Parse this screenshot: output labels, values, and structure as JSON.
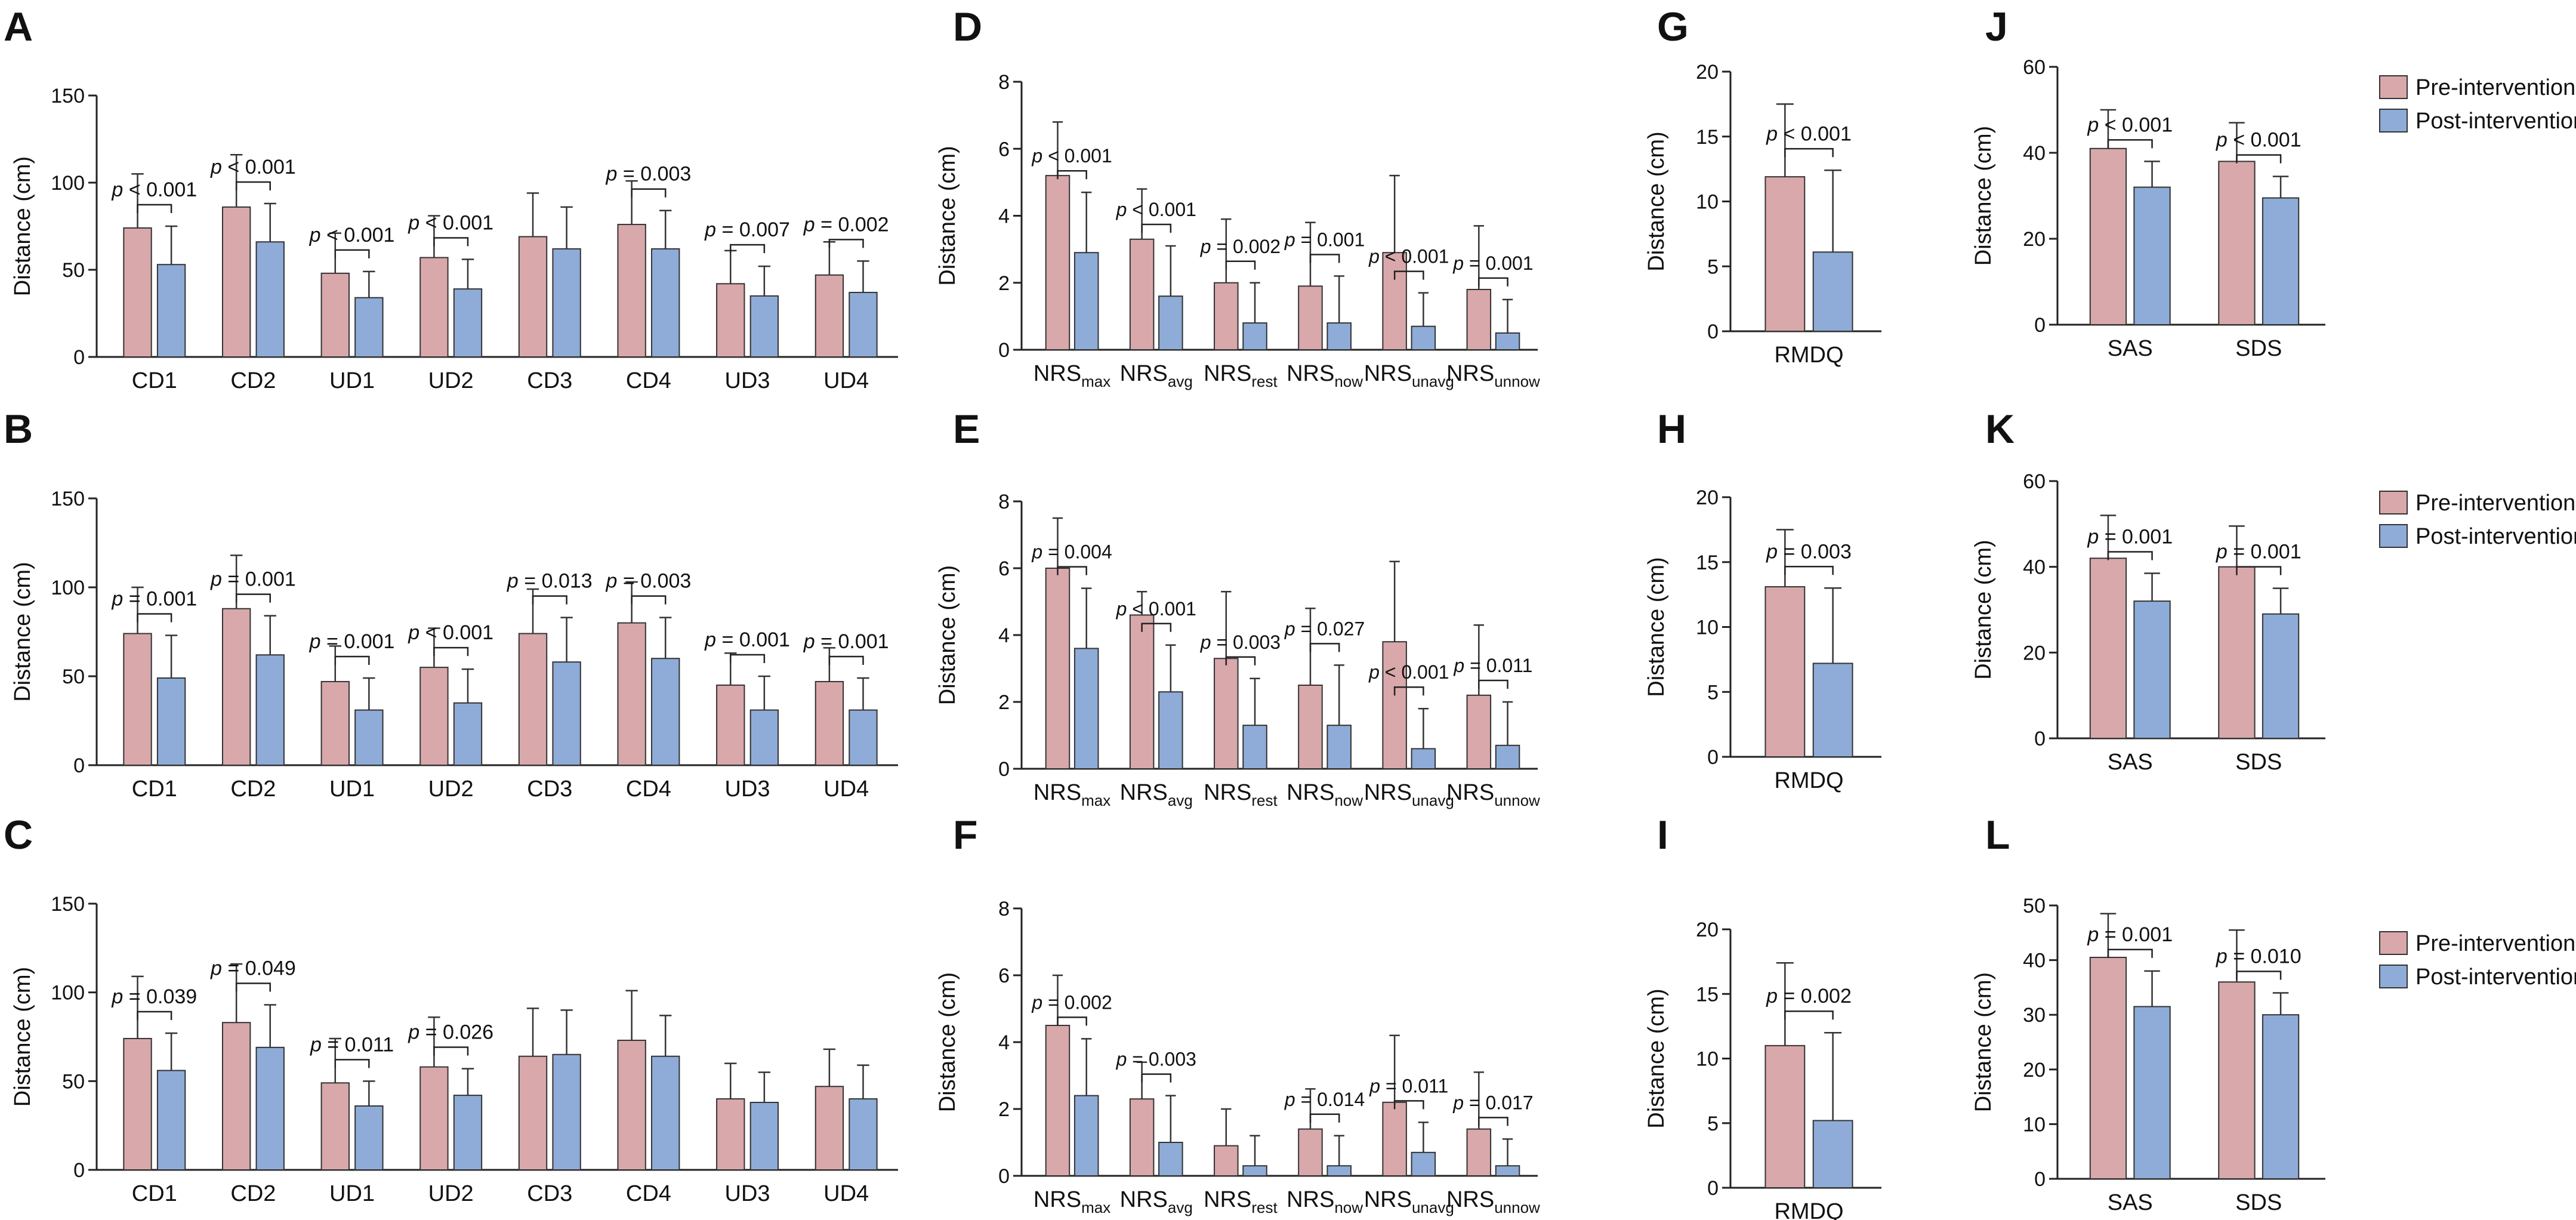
{
  "legend": {
    "pre_label": "Pre-intervention",
    "post_label": "Post-intervention",
    "pre_color": "#d9a8ab",
    "post_color": "#8facd8"
  },
  "chart_data": [
    {
      "id": "A",
      "type": "bar",
      "ylabel": "Distance (cm)",
      "ylim": [
        0,
        150
      ],
      "yticks": [
        0,
        50,
        100,
        150
      ],
      "categories": [
        "CD1",
        "CD2",
        "UD1",
        "UD2",
        "CD3",
        "CD4",
        "UD3",
        "UD4"
      ],
      "series": [
        {
          "name": "Pre-intervention",
          "values": [
            74,
            86,
            48,
            57,
            69,
            76,
            42,
            47
          ],
          "errors": [
            31,
            30,
            23,
            24,
            25,
            25,
            19,
            19
          ]
        },
        {
          "name": "Post-intervention",
          "values": [
            53,
            66,
            34,
            39,
            62,
            62,
            35,
            37
          ],
          "errors": [
            22,
            22,
            15,
            17,
            24,
            22,
            17,
            18
          ]
        }
      ],
      "annotations": [
        "p < 0.001",
        "p < 0.001",
        "p < 0.001",
        "p < 0.001",
        "",
        "p = 0.003",
        "p = 0.007",
        "p = 0.002"
      ]
    },
    {
      "id": "B",
      "type": "bar",
      "ylabel": "Distance (cm)",
      "ylim": [
        0,
        150
      ],
      "yticks": [
        0,
        50,
        100,
        150
      ],
      "categories": [
        "CD1",
        "CD2",
        "UD1",
        "UD2",
        "CD3",
        "CD4",
        "UD3",
        "UD4"
      ],
      "series": [
        {
          "name": "Pre-intervention",
          "values": [
            74,
            88,
            47,
            55,
            74,
            80,
            45,
            47
          ],
          "errors": [
            26,
            30,
            20,
            22,
            25,
            23,
            18,
            19
          ]
        },
        {
          "name": "Post-intervention",
          "values": [
            49,
            62,
            31,
            35,
            58,
            60,
            31,
            31
          ],
          "errors": [
            24,
            22,
            18,
            19,
            25,
            23,
            19,
            18
          ]
        }
      ],
      "annotations": [
        "p = 0.001",
        "p = 0.001",
        "p = 0.001",
        "p < 0.001",
        "p = 0.013",
        "p = 0.003",
        "p = 0.001",
        "p = 0.001"
      ]
    },
    {
      "id": "C",
      "type": "bar",
      "ylabel": "Distance (cm)",
      "ylim": [
        0,
        150
      ],
      "yticks": [
        0,
        50,
        100,
        150
      ],
      "categories": [
        "CD1",
        "CD2",
        "UD1",
        "UD2",
        "CD3",
        "CD4",
        "UD3",
        "UD4"
      ],
      "series": [
        {
          "name": "Pre-intervention",
          "values": [
            74,
            83,
            49,
            58,
            64,
            73,
            40,
            47
          ],
          "errors": [
            35,
            33,
            25,
            28,
            27,
            28,
            20,
            21
          ]
        },
        {
          "name": "Post-intervention",
          "values": [
            56,
            69,
            36,
            42,
            65,
            64,
            38,
            40
          ],
          "errors": [
            21,
            24,
            14,
            15,
            25,
            23,
            17,
            19
          ]
        }
      ],
      "annotations": [
        "p = 0.039",
        "p = 0.049",
        "p = 0.011",
        "p = 0.026",
        "",
        "",
        "",
        ""
      ]
    },
    {
      "id": "D",
      "type": "bar",
      "ylabel": "Distance (cm)",
      "ylim": [
        0,
        8
      ],
      "yticks": [
        0,
        2,
        4,
        6,
        8
      ],
      "categories": [
        "NRS_max",
        "NRS_avg",
        "NRS_rest",
        "NRS_now",
        "NRS_unavg",
        "NRS_unnow"
      ],
      "category_text": [
        "NRS",
        "NRS",
        "NRS",
        "NRS",
        "NRS",
        "NRS"
      ],
      "category_sub": [
        "max",
        "avg",
        "rest",
        "now",
        "unavg",
        "unnow"
      ],
      "series": [
        {
          "name": "Pre-intervention",
          "values": [
            5.2,
            3.3,
            2.0,
            1.9,
            2.9,
            1.8
          ],
          "errors": [
            1.6,
            1.5,
            1.9,
            1.9,
            2.3,
            1.9
          ]
        },
        {
          "name": "Post-intervention",
          "values": [
            2.9,
            1.6,
            0.8,
            0.8,
            0.7,
            0.5
          ],
          "errors": [
            1.8,
            1.5,
            1.2,
            1.4,
            1.0,
            1.0
          ]
        }
      ],
      "annotations": [
        "p < 0.001",
        "p < 0.001",
        "p = 0.002",
        "p = 0.001",
        "p < 0.001",
        "p = 0.001"
      ]
    },
    {
      "id": "E",
      "type": "bar",
      "ylabel": "Distance (cm)",
      "ylim": [
        0,
        8
      ],
      "yticks": [
        0,
        2,
        4,
        6,
        8
      ],
      "categories": [
        "NRS_max",
        "NRS_avg",
        "NRS_rest",
        "NRS_now",
        "NRS_unavg",
        "NRS_unnow"
      ],
      "category_text": [
        "NRS",
        "NRS",
        "NRS",
        "NRS",
        "NRS",
        "NRS"
      ],
      "category_sub": [
        "max",
        "avg",
        "rest",
        "now",
        "unavg",
        "unnow"
      ],
      "series": [
        {
          "name": "Pre-intervention",
          "values": [
            6.0,
            4.6,
            3.3,
            2.5,
            3.8,
            2.2
          ],
          "errors": [
            1.5,
            0.7,
            2.0,
            2.3,
            2.4,
            2.1
          ]
        },
        {
          "name": "Post-intervention",
          "values": [
            3.6,
            2.3,
            1.3,
            1.3,
            0.6,
            0.7
          ],
          "errors": [
            1.8,
            1.4,
            1.4,
            1.8,
            1.2,
            1.3
          ]
        }
      ],
      "annotations": [
        "p = 0.004",
        "p < 0.001",
        "p = 0.003",
        "p = 0.027",
        "p < 0.001",
        "p = 0.011"
      ]
    },
    {
      "id": "F",
      "type": "bar",
      "ylabel": "Distance (cm)",
      "ylim": [
        0,
        8
      ],
      "yticks": [
        0,
        2,
        4,
        6,
        8
      ],
      "categories": [
        "NRS_max",
        "NRS_avg",
        "NRS_rest",
        "NRS_now",
        "NRS_unavg",
        "NRS_unnow"
      ],
      "category_text": [
        "NRS",
        "NRS",
        "NRS",
        "NRS",
        "NRS",
        "NRS"
      ],
      "category_sub": [
        "max",
        "avg",
        "rest",
        "now",
        "unavg",
        "unnow"
      ],
      "series": [
        {
          "name": "Pre-intervention",
          "values": [
            4.5,
            2.3,
            0.9,
            1.4,
            2.2,
            1.4
          ],
          "errors": [
            1.5,
            1.1,
            1.1,
            1.2,
            2.0,
            1.7
          ]
        },
        {
          "name": "Post-intervention",
          "values": [
            2.4,
            1.0,
            0.3,
            0.3,
            0.7,
            0.3
          ],
          "errors": [
            1.7,
            1.4,
            0.9,
            0.9,
            0.9,
            0.8
          ]
        }
      ],
      "annotations": [
        "p = 0.002",
        "p = 0.003",
        "",
        "p = 0.014",
        "p = 0.011",
        "p = 0.017"
      ]
    },
    {
      "id": "G",
      "type": "bar",
      "ylabel": "Distance (cm)",
      "ylim": [
        0,
        20
      ],
      "yticks": [
        0,
        5,
        10,
        15,
        20
      ],
      "categories": [
        "RMDQ"
      ],
      "series": [
        {
          "name": "Pre-intervention",
          "values": [
            11.9
          ],
          "errors": [
            5.6
          ]
        },
        {
          "name": "Post-intervention",
          "values": [
            6.1
          ],
          "errors": [
            6.3
          ]
        }
      ],
      "annotations": [
        "p < 0.001"
      ]
    },
    {
      "id": "H",
      "type": "bar",
      "ylabel": "Distance (cm)",
      "ylim": [
        0,
        20
      ],
      "yticks": [
        0,
        5,
        10,
        15,
        20
      ],
      "categories": [
        "RMDQ"
      ],
      "series": [
        {
          "name": "Pre-intervention",
          "values": [
            13.1
          ],
          "errors": [
            4.4
          ]
        },
        {
          "name": "Post-intervention",
          "values": [
            7.2
          ],
          "errors": [
            5.8
          ]
        }
      ],
      "annotations": [
        "p = 0.003"
      ]
    },
    {
      "id": "I",
      "type": "bar",
      "ylabel": "Distance (cm)",
      "ylim": [
        0,
        20
      ],
      "yticks": [
        0,
        5,
        10,
        15,
        20
      ],
      "categories": [
        "RMDQ"
      ],
      "series": [
        {
          "name": "Pre-intervention",
          "values": [
            11.0
          ],
          "errors": [
            6.4
          ]
        },
        {
          "name": "Post-intervention",
          "values": [
            5.2
          ],
          "errors": [
            6.8
          ]
        }
      ],
      "annotations": [
        "p = 0.002"
      ]
    },
    {
      "id": "J",
      "type": "bar",
      "ylabel": "Distance (cm)",
      "ylim": [
        0,
        60
      ],
      "yticks": [
        0,
        20,
        40,
        60
      ],
      "categories": [
        "SAS",
        "SDS"
      ],
      "series": [
        {
          "name": "Pre-intervention",
          "values": [
            41,
            38
          ],
          "errors": [
            9,
            9
          ]
        },
        {
          "name": "Post-intervention",
          "values": [
            32,
            29.5
          ],
          "errors": [
            6,
            5
          ]
        }
      ],
      "annotations": [
        "p < 0.001",
        "p < 0.001"
      ]
    },
    {
      "id": "K",
      "type": "bar",
      "ylabel": "Distance (cm)",
      "ylim": [
        0,
        60
      ],
      "yticks": [
        0,
        20,
        40,
        60
      ],
      "categories": [
        "SAS",
        "SDS"
      ],
      "series": [
        {
          "name": "Pre-intervention",
          "values": [
            42,
            40
          ],
          "errors": [
            10,
            9.5
          ]
        },
        {
          "name": "Post-intervention",
          "values": [
            32,
            29
          ],
          "errors": [
            6.5,
            6
          ]
        }
      ],
      "annotations": [
        "p = 0.001",
        "p = 0.001"
      ]
    },
    {
      "id": "L",
      "type": "bar",
      "ylabel": "Distance (cm)",
      "ylim": [
        0,
        50
      ],
      "yticks": [
        0,
        10,
        20,
        30,
        40,
        50
      ],
      "categories": [
        "SAS",
        "SDS"
      ],
      "series": [
        {
          "name": "Pre-intervention",
          "values": [
            40.5,
            36
          ],
          "errors": [
            8,
            9.5
          ]
        },
        {
          "name": "Post-intervention",
          "values": [
            31.5,
            30
          ],
          "errors": [
            6.5,
            4
          ]
        }
      ],
      "annotations": [
        "p = 0.001",
        "p = 0.010"
      ]
    }
  ]
}
